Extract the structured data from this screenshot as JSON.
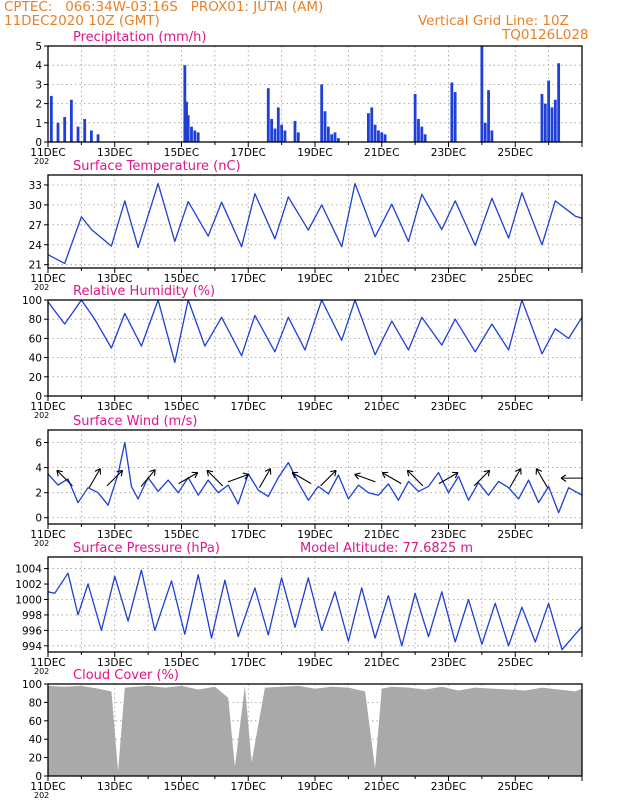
{
  "header": {
    "line1": "CPTEC:   066:34W-03:16S   PROX01: JUTAI (AM)",
    "line2": "11DEC2020 10Z (GMT)",
    "grid_note": "Vertical Grid Line: 10Z",
    "run_code": "TQ0126L028"
  },
  "colors": {
    "header": "#e8802a",
    "panel_title": "#e0148c",
    "series": "#1f3fd6",
    "cloud": "#a9a9a9",
    "axis": "#000000",
    "grid": "#9a9a9a"
  },
  "chart_data": [
    {
      "type": "bar",
      "title": "Precipitation (mm/h)",
      "ylim": [
        0,
        5
      ],
      "yticks": [
        "0",
        "1",
        "2",
        "3",
        "4",
        "5"
      ],
      "xticks": [
        "11DEC",
        "13DEC",
        "15DEC",
        "17DEC",
        "19DEC",
        "21DEC",
        "23DEC",
        "25DEC"
      ],
      "x_unit": "days since 11DEC2020 10Z",
      "x_start_label": "202",
      "x": [
        0.1,
        0.3,
        0.5,
        0.7,
        0.9,
        1.1,
        1.3,
        1.5,
        4.1,
        4.15,
        4.2,
        4.3,
        4.4,
        4.5,
        6.6,
        6.7,
        6.8,
        6.9,
        7.0,
        7.1,
        7.4,
        7.5,
        8.2,
        8.3,
        8.4,
        8.5,
        8.6,
        8.7,
        9.6,
        9.7,
        9.8,
        9.9,
        10.0,
        10.1,
        11.0,
        11.1,
        11.2,
        11.3,
        12.1,
        12.2,
        13.0,
        13.1,
        13.2,
        13.3,
        14.8,
        14.9,
        15.0,
        15.1,
        15.2,
        15.3
      ],
      "values": [
        2.4,
        1.0,
        1.3,
        2.2,
        0.8,
        1.2,
        0.6,
        0.4,
        4.0,
        2.1,
        1.4,
        0.8,
        0.6,
        0.5,
        2.8,
        1.2,
        0.7,
        1.8,
        0.9,
        0.6,
        1.1,
        0.5,
        3.0,
        1.6,
        0.8,
        0.4,
        0.5,
        0.2,
        1.5,
        1.8,
        0.9,
        0.6,
        0.5,
        0.4,
        2.5,
        1.2,
        0.8,
        0.4,
        3.1,
        2.6,
        5.0,
        1.0,
        2.7,
        0.6,
        2.5,
        2.0,
        3.2,
        1.8,
        2.2,
        4.1
      ]
    },
    {
      "type": "line",
      "title": "Surface Temperature (nC)",
      "ylim": [
        20.5,
        34.5
      ],
      "yticks": [
        "21",
        "24",
        "27",
        "30",
        "33"
      ],
      "xticks": [
        "11DEC",
        "13DEC",
        "15DEC",
        "17DEC",
        "19DEC",
        "21DEC",
        "23DEC",
        "25DEC"
      ],
      "x_unit": "days since 11DEC2020 10Z",
      "x_start_label": "202",
      "x": [
        0,
        0.5,
        1.0,
        1.3,
        1.9,
        2.3,
        2.7,
        3.3,
        3.8,
        4.2,
        4.8,
        5.2,
        5.8,
        6.2,
        6.8,
        7.2,
        7.8,
        8.2,
        8.8,
        9.2,
        9.8,
        10.3,
        10.8,
        11.2,
        11.8,
        12.2,
        12.8,
        13.3,
        13.8,
        14.2,
        14.8,
        15.2,
        15.8,
        16.0
      ],
      "values": [
        22.5,
        21.2,
        28.2,
        26.3,
        23.8,
        30.6,
        23.6,
        33.2,
        24.5,
        30.5,
        25.3,
        30.4,
        23.7,
        31.7,
        24.9,
        31.2,
        26.2,
        30.0,
        23.7,
        33.2,
        25.2,
        30.1,
        24.5,
        31.6,
        26.3,
        30.6,
        23.9,
        31.0,
        25.0,
        31.8,
        24.0,
        30.6,
        28.3,
        28.0
      ]
    },
    {
      "type": "line",
      "title": "Relative Humidity (%)",
      "ylim": [
        0,
        100
      ],
      "yticks": [
        "0",
        "20",
        "40",
        "60",
        "80",
        "100"
      ],
      "xticks": [
        "11DEC",
        "13DEC",
        "15DEC",
        "17DEC",
        "19DEC",
        "21DEC",
        "23DEC",
        "25DEC"
      ],
      "x_unit": "days since 11DEC2020 10Z",
      "x_start_label": "202",
      "x": [
        0,
        0.5,
        1.0,
        1.4,
        1.9,
        2.3,
        2.8,
        3.3,
        3.8,
        4.2,
        4.7,
        5.2,
        5.8,
        6.2,
        6.8,
        7.2,
        7.7,
        8.2,
        8.8,
        9.2,
        9.8,
        10.3,
        10.8,
        11.2,
        11.8,
        12.2,
        12.8,
        13.3,
        13.8,
        14.2,
        14.8,
        15.2,
        15.6,
        16.0
      ],
      "values": [
        98,
        75,
        100,
        80,
        50,
        86,
        52,
        100,
        35,
        100,
        52,
        82,
        42,
        84,
        46,
        82,
        48,
        100,
        58,
        100,
        43,
        78,
        48,
        82,
        53,
        80,
        46,
        75,
        48,
        100,
        44,
        70,
        60,
        82
      ]
    },
    {
      "type": "line",
      "title": "Surface Wind (m/s)",
      "ylim": [
        -0.5,
        7.0
      ],
      "yticks": [
        "0",
        "2",
        "4",
        "6"
      ],
      "xticks": [
        "11DEC",
        "13DEC",
        "15DEC",
        "17DEC",
        "19DEC",
        "21DEC",
        "23DEC",
        "25DEC"
      ],
      "x_unit": "days since 11DEC2020 10Z",
      "x_start_label": "202",
      "x": [
        0,
        0.3,
        0.6,
        0.9,
        1.2,
        1.5,
        1.8,
        2.1,
        2.3,
        2.5,
        2.7,
        3.0,
        3.3,
        3.6,
        3.9,
        4.2,
        4.5,
        4.8,
        5.1,
        5.4,
        5.7,
        6.0,
        6.3,
        6.6,
        6.9,
        7.2,
        7.5,
        7.8,
        8.1,
        8.4,
        8.7,
        9.0,
        9.3,
        9.6,
        9.9,
        10.2,
        10.5,
        10.8,
        11.1,
        11.4,
        11.7,
        12.0,
        12.3,
        12.6,
        12.9,
        13.2,
        13.5,
        13.8,
        14.1,
        14.4,
        14.7,
        15.0,
        15.3,
        15.6,
        16.0
      ],
      "values": [
        3.5,
        2.6,
        3.1,
        1.2,
        2.4,
        2.0,
        1.0,
        3.5,
        6.0,
        2.5,
        1.5,
        3.2,
        2.1,
        3.0,
        2.0,
        3.2,
        1.8,
        3.0,
        2.0,
        2.6,
        1.1,
        3.5,
        2.2,
        1.7,
        3.2,
        4.4,
        2.8,
        1.4,
        2.5,
        1.9,
        3.4,
        1.5,
        2.6,
        2.0,
        1.8,
        2.7,
        1.4,
        2.9,
        2.1,
        2.5,
        3.6,
        2.0,
        3.3,
        1.4,
        2.8,
        1.8,
        2.9,
        2.4,
        1.5,
        3.0,
        1.2,
        2.5,
        0.4,
        2.4,
        1.8
      ],
      "vectors": [
        {
          "x": 0.5,
          "dir": -135
        },
        {
          "x": 1.4,
          "dir": -60
        },
        {
          "x": 2.0,
          "dir": -45
        },
        {
          "x": 3.0,
          "dir": -50
        },
        {
          "x": 4.2,
          "dir": -30
        },
        {
          "x": 5.0,
          "dir": -135
        },
        {
          "x": 5.7,
          "dir": -20
        },
        {
          "x": 6.5,
          "dir": -60
        },
        {
          "x": 7.6,
          "dir": -150
        },
        {
          "x": 8.4,
          "dir": -45
        },
        {
          "x": 9.5,
          "dir": -160
        },
        {
          "x": 10.3,
          "dir": -150
        },
        {
          "x": 11.0,
          "dir": -135
        },
        {
          "x": 12.0,
          "dir": -30
        },
        {
          "x": 13.0,
          "dir": -45
        },
        {
          "x": 14.0,
          "dir": -60
        },
        {
          "x": 14.8,
          "dir": -120
        },
        {
          "x": 15.7,
          "dir": 180
        }
      ]
    },
    {
      "type": "line",
      "title": "Surface Pressure (hPa)",
      "annotation": "Model Altitude: 77.6825 m",
      "ylim": [
        993.2,
        1005.5
      ],
      "yticks": [
        "994",
        "996",
        "998",
        "1000",
        "1002",
        "1004"
      ],
      "xticks": [
        "11DEC",
        "13DEC",
        "15DEC",
        "17DEC",
        "19DEC",
        "21DEC",
        "23DEC",
        "25DEC"
      ],
      "x_unit": "days since 11DEC2020 10Z",
      "x_start_label": "202",
      "x": [
        0,
        0.2,
        0.6,
        0.9,
        1.2,
        1.6,
        2.0,
        2.4,
        2.8,
        3.2,
        3.7,
        4.1,
        4.5,
        4.9,
        5.3,
        5.7,
        6.2,
        6.6,
        7.0,
        7.4,
        7.8,
        8.2,
        8.6,
        9.0,
        9.4,
        9.8,
        10.2,
        10.6,
        11.0,
        11.4,
        11.8,
        12.2,
        12.6,
        13.0,
        13.4,
        13.8,
        14.2,
        14.6,
        15.0,
        15.4,
        15.8,
        16.0
      ],
      "values": [
        1001,
        1000.8,
        1003.4,
        998.0,
        1002.0,
        996.0,
        1003.0,
        997.2,
        1003.8,
        996.0,
        1002.4,
        995.5,
        1003.2,
        995.0,
        1002.5,
        995.2,
        1001.5,
        995.4,
        1002.8,
        996.4,
        1002.8,
        996.0,
        1001.0,
        994.6,
        1001.5,
        995.0,
        1000.5,
        994.0,
        1000.8,
        995.2,
        1001.0,
        994.5,
        1000.0,
        994.2,
        999.5,
        994.0,
        999.0,
        994.5,
        999.5,
        993.5,
        995.5,
        996.5
      ]
    },
    {
      "type": "area",
      "title": "Cloud Cover (%)",
      "ylim": [
        0,
        100
      ],
      "yticks": [
        "0",
        "20",
        "40",
        "60",
        "80",
        "100"
      ],
      "xticks": [
        "11DEC",
        "13DEC",
        "15DEC",
        "17DEC",
        "19DEC",
        "21DEC",
        "23DEC",
        "25DEC"
      ],
      "x_unit": "days since 11DEC2020 10Z",
      "x_start_label": "202",
      "x": [
        0,
        0.5,
        1.0,
        1.5,
        1.9,
        2.1,
        2.3,
        2.6,
        3.0,
        3.5,
        4.0,
        4.5,
        5.0,
        5.4,
        5.6,
        5.9,
        6.1,
        6.5,
        7.0,
        7.5,
        8.0,
        8.5,
        9.0,
        9.5,
        9.8,
        10.0,
        10.3,
        10.8,
        11.3,
        11.8,
        12.3,
        12.8,
        13.3,
        13.8,
        14.3,
        14.8,
        15.3,
        15.8,
        16.0
      ],
      "values": [
        98,
        97,
        98,
        95,
        92,
        5,
        96,
        97,
        98,
        96,
        98,
        94,
        97,
        85,
        10,
        98,
        15,
        96,
        97,
        98,
        95,
        97,
        96,
        92,
        8,
        95,
        97,
        96,
        94,
        97,
        93,
        96,
        95,
        94,
        93,
        96,
        94,
        92,
        95
      ]
    }
  ]
}
